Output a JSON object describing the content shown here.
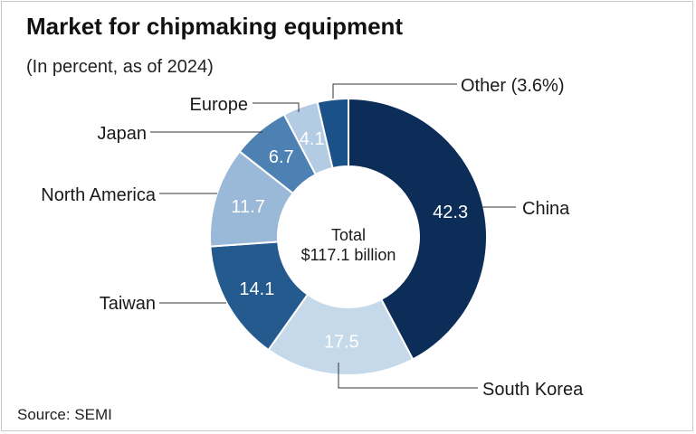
{
  "chart_data": {
    "type": "pie",
    "title": "Market for chipmaking equipment",
    "subtitle": "(In percent, as of 2024)",
    "source": "Source: SEMI",
    "center_label": [
      "Total",
      "$117.1 billion"
    ],
    "slices": [
      {
        "name": "China",
        "value": 42.3,
        "value_label": "42.3",
        "color": "#0b2d57",
        "label_color": "#ffffff"
      },
      {
        "name": "South Korea",
        "value": 17.5,
        "value_label": "17.5",
        "color": "#c5d9ea",
        "label_color": "#ffffff"
      },
      {
        "name": "Taiwan",
        "value": 14.1,
        "value_label": "14.1",
        "color": "#245a8e",
        "label_color": "#ffffff"
      },
      {
        "name": "North America",
        "value": 11.7,
        "value_label": "11.7",
        "color": "#9ab9d8",
        "label_color": "#ffffff"
      },
      {
        "name": "Japan",
        "value": 6.7,
        "value_label": "6.7",
        "color": "#4d81b3",
        "label_color": "#ffffff"
      },
      {
        "name": "Europe",
        "value": 4.1,
        "value_label": "4.1",
        "color": "#b3cbe3",
        "label_color": "#ffffff"
      },
      {
        "name": "Other (3.6%)",
        "value": 3.6,
        "value_label": "",
        "color": "#1a5189",
        "label_color": "#ffffff"
      }
    ],
    "legend": "none"
  }
}
